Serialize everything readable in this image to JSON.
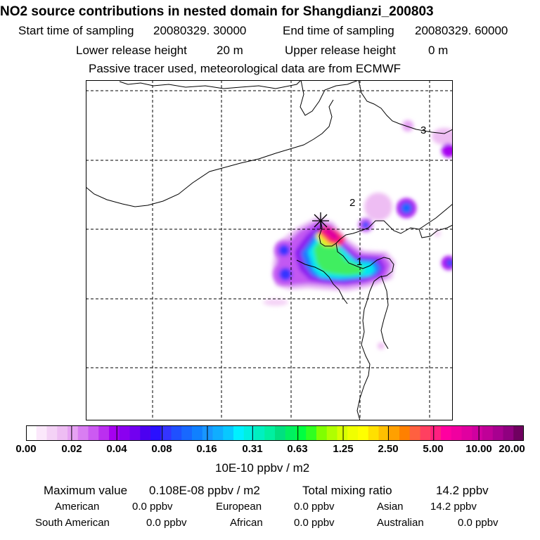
{
  "title": "NO2 source contributions in nested domain for Shangdianzi_200803",
  "header": {
    "start_label": "Start time of sampling",
    "start_value": "20080329. 30000",
    "end_label": "End time of sampling",
    "end_value": "20080329. 60000",
    "lower_label": "Lower release height",
    "lower_value": "20 m",
    "upper_label": "Upper release height",
    "upper_value": "0 m",
    "note": "Passive tracer used, meteorological data are from ECMWF"
  },
  "map": {
    "markers": [
      "1",
      "2",
      "3"
    ],
    "receptor_symbol": "✳"
  },
  "colorbar": {
    "tick_labels": [
      "0.00",
      "0.02",
      "0.04",
      "0.08",
      "0.16",
      "0.31",
      "0.63",
      "1.25",
      "2.50",
      "5.00",
      "10.00",
      "20.00"
    ],
    "colors": [
      "#ffffff",
      "#fbe8fb",
      "#f4d2f6",
      "#eebdf3",
      "#e6a2f3",
      "#d97ef2",
      "#cc5af2",
      "#bb2ff0",
      "#a600f0",
      "#8a00f0",
      "#7200f0",
      "#4c00f0",
      "#2a10ff",
      "#3434ff",
      "#2050ff",
      "#1868ff",
      "#1080ff",
      "#1896ff",
      "#10adff",
      "#08c8ff",
      "#00f0ff",
      "#00f0e0",
      "#00f0c0",
      "#00f0a0",
      "#00e080",
      "#00f060",
      "#00ff40",
      "#30ff20",
      "#80ff00",
      "#b0ff00",
      "#d8ff00",
      "#f0ff00",
      "#ffff00",
      "#ffe000",
      "#ffc000",
      "#ffa000",
      "#ff8000",
      "#ff6040",
      "#ff4060",
      "#ff2080",
      "#ff00a0",
      "#f000a0",
      "#e000a0",
      "#d000a0",
      "#c00098",
      "#a80090",
      "#900080",
      "#700060"
    ],
    "unit": "10E-10 ppbv / m2"
  },
  "footer": {
    "max_label": "Maximum value",
    "max_value": "0.108E-08 ppbv / m2",
    "total_label": "Total mixing ratio",
    "total_value": "14.2 ppbv",
    "regions": [
      {
        "name": "American",
        "value": "0.0 ppbv"
      },
      {
        "name": "European",
        "value": "0.0 ppbv"
      },
      {
        "name": "Asian",
        "value": "14.2 ppbv"
      },
      {
        "name": "South American",
        "value": "0.0 ppbv"
      },
      {
        "name": "African",
        "value": "0.0 ppbv"
      },
      {
        "name": "Australian",
        "value": "0.0 ppbv"
      }
    ]
  },
  "colors": {
    "gridline": "#000000",
    "border": "#000000"
  }
}
